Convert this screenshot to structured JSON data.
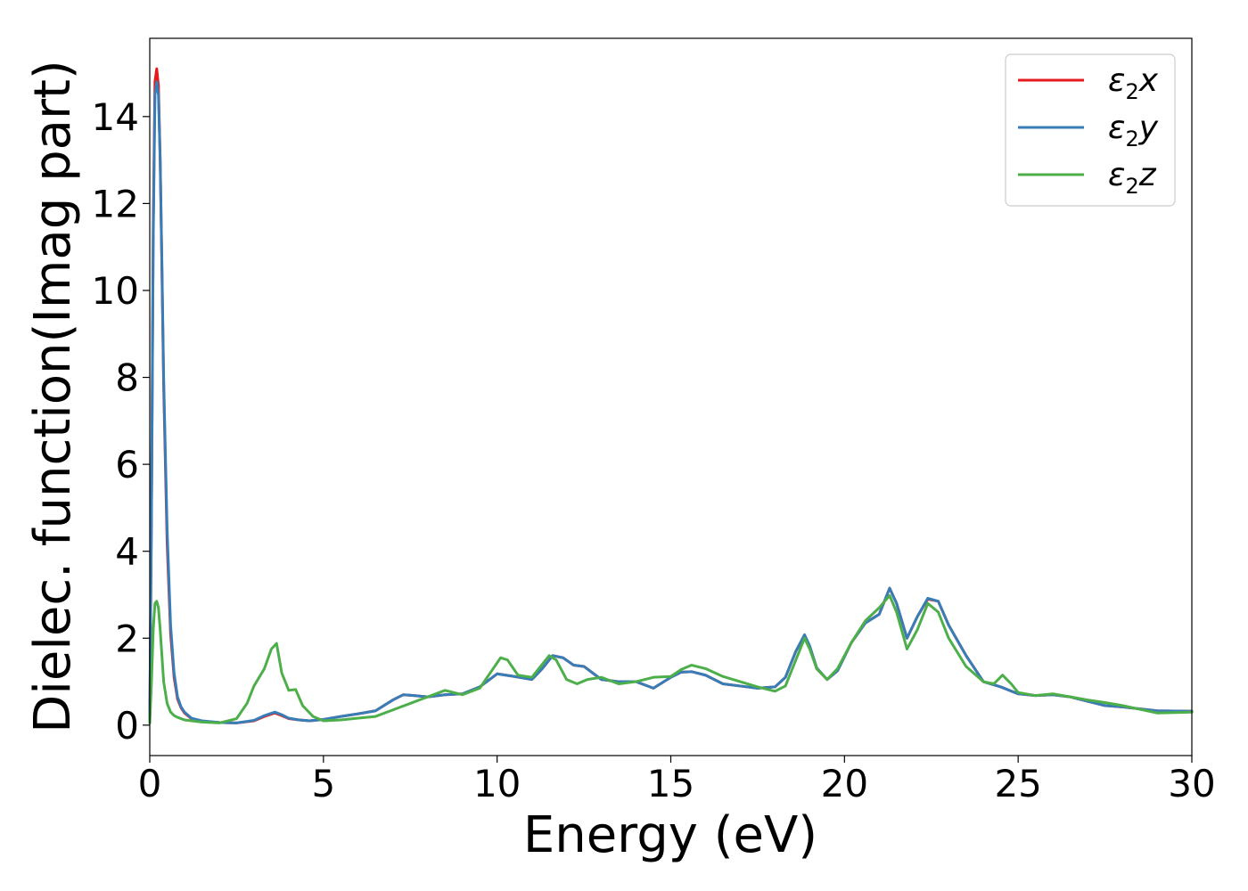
{
  "chart_data": {
    "type": "line",
    "xlabel": "Energy (eV)",
    "ylabel": "Dielec. function(Imag part)",
    "xlim": [
      0,
      30
    ],
    "ylim": [
      -0.7,
      15.8
    ],
    "xticks": [
      0,
      5,
      10,
      15,
      20,
      25,
      30
    ],
    "yticks": [
      0,
      2,
      4,
      6,
      8,
      10,
      12,
      14
    ],
    "legend_position": "top-right",
    "grid": false,
    "series": [
      {
        "name": "ε2x",
        "legend": {
          "base": "ε",
          "sub": "2",
          "tail": "x"
        },
        "color": "#e41a1c",
        "x": [
          0,
          0.05,
          0.1,
          0.15,
          0.2,
          0.25,
          0.3,
          0.35,
          0.4,
          0.5,
          0.6,
          0.7,
          0.8,
          0.9,
          1.0,
          1.2,
          1.5,
          2.0,
          2.5,
          3.0,
          3.3,
          3.6,
          3.8,
          4.0,
          4.3,
          4.6,
          5.0,
          5.5,
          6.0,
          6.5,
          7.0,
          7.3,
          7.6,
          8.0,
          8.5,
          9.0,
          9.5,
          10.0,
          10.5,
          11.0,
          11.3,
          11.6,
          11.9,
          12.2,
          12.5,
          13.0,
          13.5,
          14.0,
          14.5,
          15.0,
          15.3,
          15.6,
          16.0,
          16.5,
          17.0,
          17.5,
          18.0,
          18.3,
          18.6,
          18.85,
          19.0,
          19.2,
          19.5,
          19.8,
          20.2,
          20.6,
          21.0,
          21.3,
          21.5,
          21.8,
          22.1,
          22.4,
          22.7,
          23.0,
          23.5,
          24.0,
          24.5,
          25.0,
          25.5,
          26.0,
          26.5,
          27.0,
          27.5,
          28.0,
          29.0,
          30.0
        ],
        "y": [
          0.1,
          5.0,
          11.5,
          14.8,
          15.1,
          14.7,
          13.0,
          10.5,
          7.8,
          4.2,
          2.1,
          1.1,
          0.6,
          0.4,
          0.28,
          0.15,
          0.09,
          0.06,
          0.05,
          0.1,
          0.2,
          0.28,
          0.22,
          0.15,
          0.12,
          0.1,
          0.13,
          0.2,
          0.26,
          0.33,
          0.58,
          0.7,
          0.68,
          0.65,
          0.7,
          0.72,
          0.88,
          1.18,
          1.12,
          1.05,
          1.3,
          1.6,
          1.55,
          1.38,
          1.35,
          1.05,
          1.0,
          1.0,
          0.85,
          1.1,
          1.22,
          1.23,
          1.15,
          0.95,
          0.9,
          0.85,
          0.88,
          1.1,
          1.7,
          2.05,
          1.8,
          1.3,
          1.05,
          1.25,
          1.9,
          2.35,
          2.55,
          3.15,
          2.8,
          2.0,
          2.5,
          2.9,
          2.85,
          2.3,
          1.6,
          1.0,
          0.88,
          0.72,
          0.68,
          0.7,
          0.65,
          0.55,
          0.45,
          0.42,
          0.33,
          0.32
        ]
      },
      {
        "name": "ε2y",
        "legend": {
          "base": "ε",
          "sub": "2",
          "tail": "y"
        },
        "color": "#377eb8",
        "x": [
          0,
          0.05,
          0.1,
          0.15,
          0.2,
          0.25,
          0.3,
          0.35,
          0.4,
          0.5,
          0.6,
          0.7,
          0.8,
          0.9,
          1.0,
          1.2,
          1.5,
          2.0,
          2.5,
          3.0,
          3.3,
          3.6,
          3.8,
          4.0,
          4.3,
          4.6,
          5.0,
          5.5,
          6.0,
          6.5,
          7.0,
          7.3,
          7.6,
          8.0,
          8.5,
          9.0,
          9.5,
          10.0,
          10.5,
          11.0,
          11.3,
          11.6,
          11.9,
          12.2,
          12.5,
          13.0,
          13.5,
          14.0,
          14.5,
          15.0,
          15.3,
          15.6,
          16.0,
          16.5,
          17.0,
          17.5,
          18.0,
          18.3,
          18.6,
          18.85,
          19.0,
          19.2,
          19.5,
          19.8,
          20.2,
          20.6,
          21.0,
          21.3,
          21.5,
          21.8,
          22.1,
          22.4,
          22.7,
          23.0,
          23.5,
          24.0,
          24.5,
          25.0,
          25.5,
          26.0,
          26.5,
          27.0,
          27.5,
          28.0,
          29.0,
          30.0
        ],
        "y": [
          0.1,
          4.8,
          11.2,
          14.5,
          14.8,
          14.5,
          13.0,
          10.6,
          8.0,
          4.5,
          2.3,
          1.2,
          0.65,
          0.42,
          0.3,
          0.16,
          0.1,
          0.06,
          0.05,
          0.11,
          0.22,
          0.3,
          0.24,
          0.16,
          0.12,
          0.1,
          0.13,
          0.2,
          0.26,
          0.33,
          0.58,
          0.7,
          0.68,
          0.65,
          0.7,
          0.72,
          0.88,
          1.18,
          1.12,
          1.05,
          1.3,
          1.6,
          1.55,
          1.38,
          1.35,
          1.05,
          1.0,
          1.0,
          0.85,
          1.1,
          1.22,
          1.23,
          1.15,
          0.95,
          0.9,
          0.85,
          0.88,
          1.1,
          1.7,
          2.08,
          1.82,
          1.32,
          1.05,
          1.25,
          1.9,
          2.35,
          2.55,
          3.15,
          2.8,
          2.0,
          2.5,
          2.92,
          2.85,
          2.3,
          1.6,
          1.0,
          0.88,
          0.72,
          0.68,
          0.7,
          0.65,
          0.55,
          0.45,
          0.42,
          0.33,
          0.32
        ]
      },
      {
        "name": "ε2z",
        "legend": {
          "base": "ε",
          "sub": "2",
          "tail": "z"
        },
        "color": "#4daf4a",
        "x": [
          0,
          0.05,
          0.1,
          0.15,
          0.2,
          0.25,
          0.3,
          0.35,
          0.4,
          0.5,
          0.6,
          0.7,
          0.8,
          1.0,
          1.5,
          2.0,
          2.5,
          2.8,
          3.0,
          3.3,
          3.5,
          3.65,
          3.8,
          4.0,
          4.2,
          4.4,
          4.7,
          5.0,
          5.5,
          6.0,
          6.5,
          7.0,
          7.5,
          8.0,
          8.5,
          9.0,
          9.5,
          9.8,
          10.1,
          10.3,
          10.6,
          11.0,
          11.3,
          11.5,
          11.7,
          12.0,
          12.3,
          12.6,
          13.0,
          13.5,
          14.0,
          14.5,
          15.0,
          15.3,
          15.6,
          16.0,
          16.5,
          17.0,
          17.5,
          18.0,
          18.3,
          18.6,
          18.85,
          19.0,
          19.2,
          19.5,
          19.8,
          20.2,
          20.6,
          21.0,
          21.3,
          21.5,
          21.8,
          22.1,
          22.4,
          22.7,
          23.0,
          23.5,
          24.0,
          24.3,
          24.55,
          24.8,
          25.0,
          25.5,
          26.0,
          26.5,
          27.0,
          27.5,
          28.0,
          29.0,
          30.0
        ],
        "y": [
          0.05,
          1.0,
          2.2,
          2.8,
          2.85,
          2.7,
          2.2,
          1.6,
          1.0,
          0.5,
          0.3,
          0.22,
          0.18,
          0.12,
          0.07,
          0.05,
          0.15,
          0.5,
          0.9,
          1.3,
          1.75,
          1.88,
          1.2,
          0.8,
          0.82,
          0.45,
          0.2,
          0.1,
          0.12,
          0.16,
          0.2,
          0.35,
          0.5,
          0.65,
          0.8,
          0.7,
          0.85,
          1.2,
          1.55,
          1.5,
          1.15,
          1.1,
          1.4,
          1.6,
          1.5,
          1.05,
          0.95,
          1.05,
          1.1,
          0.95,
          1.0,
          1.1,
          1.12,
          1.28,
          1.38,
          1.3,
          1.12,
          1.0,
          0.88,
          0.78,
          0.9,
          1.5,
          2.0,
          1.75,
          1.3,
          1.05,
          1.3,
          1.9,
          2.4,
          2.7,
          2.98,
          2.6,
          1.75,
          2.2,
          2.8,
          2.6,
          2.0,
          1.35,
          1.0,
          0.95,
          1.15,
          0.95,
          0.75,
          0.68,
          0.72,
          0.65,
          0.58,
          0.52,
          0.45,
          0.28,
          0.3
        ]
      }
    ]
  }
}
